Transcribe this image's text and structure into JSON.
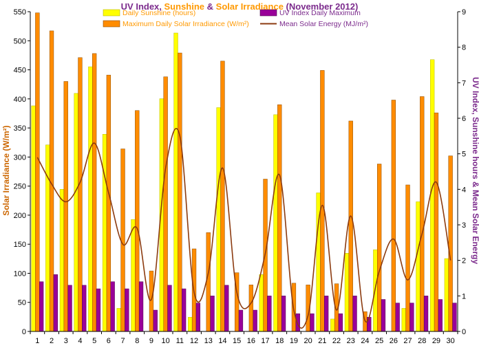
{
  "chart_data": {
    "type": "bar",
    "title": {
      "part1": "UV Index, ",
      "part2": "Sunshine",
      "part3": " & ",
      "part4": "Solar Irradiance",
      "part5": " (November 2012)"
    },
    "ylabel_left": "Solar Irradiance (W/m²)",
    "ylabel_right": "UV Index, Sunshine hours & Mean Solar Energy",
    "ylim_left": [
      0,
      550
    ],
    "ylim_right": [
      0,
      9
    ],
    "left_ticks": [
      "0",
      "50",
      "100",
      "150",
      "200",
      "250",
      "300",
      "350",
      "400",
      "450",
      "500",
      "550"
    ],
    "right_ticks": [
      "0",
      "1",
      "2",
      "3",
      "4",
      "5",
      "6",
      "7",
      "8",
      "9"
    ],
    "categories": [
      "1",
      "2",
      "3",
      "4",
      "5",
      "6",
      "7",
      "8",
      "9",
      "10",
      "11",
      "12",
      "13",
      "14",
      "15",
      "16",
      "17",
      "18",
      "19",
      "20",
      "21",
      "22",
      "23",
      "24",
      "25",
      "26",
      "27",
      "28",
      "29",
      "30"
    ],
    "grid": false,
    "legend_placement": "top",
    "colors": {
      "sunshine": "#FFFF00",
      "irradiance": "#FF8C00",
      "uv": "#990099",
      "energy": "#8B3A0F",
      "title_purple": "#7B2A8C",
      "title_orange": "#FF9900",
      "axis_left_label": "#CC6600",
      "axis_right_label": "#7B2A8C"
    },
    "series": [
      {
        "name": "Daily Sunshine (hours)",
        "axis": "right",
        "values": [
          6.35,
          5.25,
          4.0,
          6.7,
          7.45,
          5.55,
          0.65,
          3.15,
          0.0,
          6.55,
          8.4,
          0.4,
          0.0,
          6.3,
          0.0,
          0.0,
          1.6,
          6.1,
          0.0,
          0.0,
          3.9,
          0.35,
          2.2,
          0.0,
          2.3,
          0.0,
          0.65,
          3.65,
          7.65,
          2.05
        ]
      },
      {
        "name": "Maximum Daily Solar Irradiance (W/m²)",
        "axis": "left",
        "values": [
          548,
          517,
          430,
          471,
          478,
          441,
          314,
          380,
          104,
          438,
          479,
          142,
          170,
          465,
          101,
          80,
          262,
          390,
          83,
          80,
          449,
          82,
          362,
          34,
          288,
          398,
          252,
          404,
          376,
          302
        ]
      },
      {
        "name": "UV Index Daily Maximum",
        "axis": "right",
        "values": [
          1.4,
          1.6,
          1.3,
          1.3,
          1.2,
          1.4,
          1.2,
          1.4,
          0.6,
          1.3,
          1.2,
          0.8,
          1.0,
          1.3,
          0.6,
          0.6,
          1.0,
          1.0,
          0.5,
          0.5,
          1.0,
          0.5,
          1.0,
          0.4,
          0.9,
          0.8,
          0.8,
          1.0,
          0.9,
          0.8
        ]
      },
      {
        "name": "Mean Solar Energy (MJ/m²)",
        "axis": "right",
        "type": "line",
        "values": [
          4.9,
          4.15,
          3.65,
          4.2,
          5.3,
          3.9,
          2.45,
          2.9,
          0.9,
          4.6,
          5.5,
          1.1,
          1.65,
          4.6,
          1.1,
          0.8,
          2.2,
          4.4,
          0.6,
          0.45,
          3.55,
          0.6,
          3.25,
          0.3,
          1.7,
          2.6,
          1.45,
          2.75,
          4.2,
          2.0
        ]
      }
    ]
  }
}
